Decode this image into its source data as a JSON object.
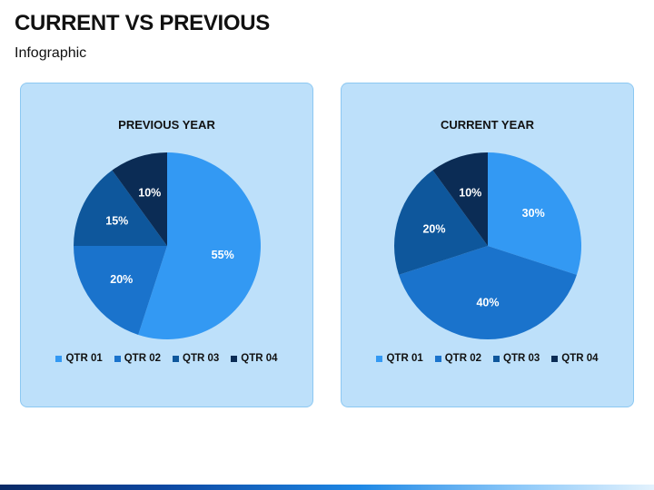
{
  "header": {
    "title": "CURRENT VS PREVIOUS",
    "subtitle": "Infographic"
  },
  "colors": {
    "qtr1": "#3399f3",
    "qtr2": "#1a73cc",
    "qtr3": "#0e579c",
    "qtr4": "#0b2c55",
    "panel_bg": "#bde0fa",
    "panel_border": "#8cc8f2",
    "label_light": "#ffffff",
    "label_dark": "#111111"
  },
  "chart_data": [
    {
      "type": "pie",
      "title": "PREVIOUS YEAR",
      "categories": [
        "QTR 01",
        "QTR 02",
        "QTR 03",
        "QTR 04"
      ],
      "values": [
        55,
        20,
        15,
        10
      ],
      "labels": [
        "55%",
        "20%",
        "15%",
        "10%"
      ],
      "legend": "bottom"
    },
    {
      "type": "pie",
      "title": "CURRENT YEAR",
      "categories": [
        "QTR 01",
        "QTR 02",
        "QTR 03",
        "QTR 04"
      ],
      "values": [
        30,
        40,
        20,
        10
      ],
      "labels": [
        "30%",
        "40%",
        "20%",
        "10%"
      ],
      "legend": "bottom"
    }
  ]
}
